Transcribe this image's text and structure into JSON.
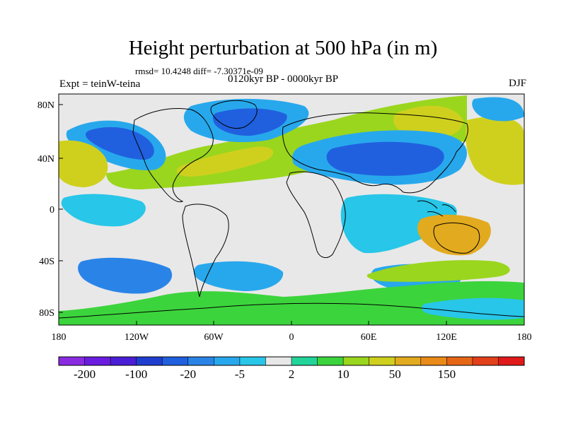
{
  "title": "Height perturbation at 500 hPa (in m)",
  "stats": "rmsd= 10.4248 diff= -7.30371e-09",
  "experiment": "Expt = teinW-teina",
  "period": "0120kyr BP - 0000kyr BP",
  "season": "DJF",
  "lat_ticks": [
    "80N",
    "40N",
    "0",
    "40S",
    "80S"
  ],
  "lon_ticks": [
    "180",
    "120W",
    "60W",
    "0",
    "60E",
    "120E",
    "180"
  ],
  "colorbar": {
    "colors": [
      "#8a2be2",
      "#6a1de0",
      "#4a1ed6",
      "#1f3ed0",
      "#2060df",
      "#2a84e8",
      "#28a8ec",
      "#28c6e8",
      "#e8e8e8",
      "#22d49a",
      "#3cd43c",
      "#9ad61e",
      "#cfd01e",
      "#e2aa1e",
      "#ea8a18",
      "#e66616",
      "#e2401a",
      "#e01a1a"
    ],
    "labels": [
      "-200",
      "-100",
      "-20",
      "-5",
      "2",
      "10",
      "50",
      "150"
    ]
  },
  "colors": {
    "background": "#e8e8e8",
    "contour": "#ffffff",
    "coast": "#000000"
  }
}
